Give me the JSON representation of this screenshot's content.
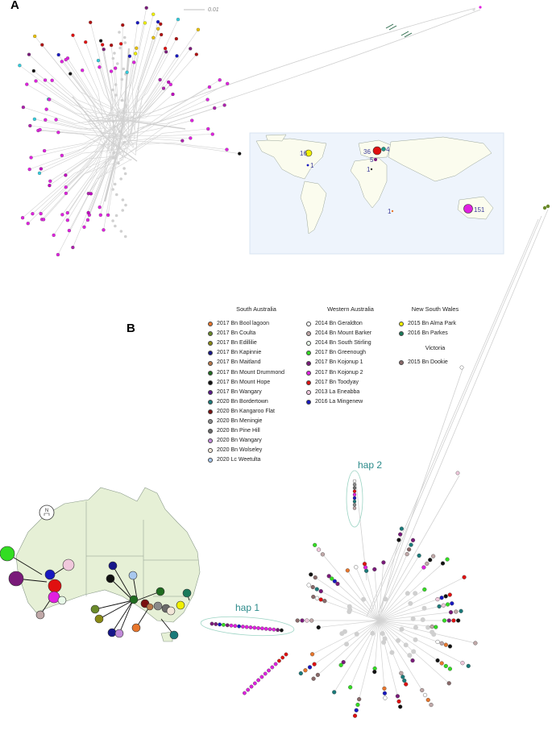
{
  "panel_a": {
    "label": "A",
    "scale_label": "0.01",
    "map_counts": [
      "16",
      "1",
      "36",
      "4",
      "5",
      "1",
      "1",
      "151"
    ]
  },
  "panel_b": {
    "label": "B",
    "hap_labels": [
      "hap 2",
      "hap 1"
    ],
    "legend_groups": [
      {
        "title": "South Australia",
        "items": [
          {
            "label": "2017 Bn Bool lagoon",
            "color": "#e8762c"
          },
          {
            "label": "2017 Bn Coulta",
            "color": "#6a8a2a"
          },
          {
            "label": "2017 Bn Edillilie",
            "color": "#8a8a14"
          },
          {
            "label": "2017 Bn Kapinnie",
            "color": "#16168a"
          },
          {
            "label": "2017 Bn Maitland",
            "color": "#b8784a"
          },
          {
            "label": "2017 Bn Mount Drummond",
            "color": "#1f6b1f"
          },
          {
            "label": "2017 Bn Mount Hope",
            "color": "#111111"
          },
          {
            "label": "2017 Bn Wangary",
            "color": "#5a1a8a"
          },
          {
            "label": "2020 Bn Bordertown",
            "color": "#1a7a7a"
          },
          {
            "label": "2020 Bn Kangaroo Flat",
            "color": "#7a1010"
          },
          {
            "label": "2020 Bn Meningie",
            "color": "#8a8a8a"
          },
          {
            "label": "2020 Bn Pine Hill",
            "color": "#6a6a6a"
          },
          {
            "label": "2020 Bn Wangary",
            "color": "#c08ad8"
          },
          {
            "label": "2020 Bn Wolseley",
            "color": "#f2e6d8"
          },
          {
            "label": "2020 Lc Weetulta",
            "color": "#a8c8ee"
          }
        ]
      },
      {
        "title": "Western Australia",
        "items": [
          {
            "label": "2014 Bn Geraldton",
            "color": "#ffffff"
          },
          {
            "label": "2014 Bn Mount Barker",
            "color": "#c0a8a8"
          },
          {
            "label": "2014 Bn South Stirling",
            "color": "#e8f8e8"
          },
          {
            "label": "2017 Bn Greenough",
            "color": "#33dd22"
          },
          {
            "label": "2017 Bn Kojonup 1",
            "color": "#7a1a7a"
          },
          {
            "label": "2017 Bn Kojonup 2",
            "color": "#e020e0"
          },
          {
            "label": "2017 Bn Toodyay",
            "color": "#e01010"
          },
          {
            "label": "2013 La Eneabba",
            "color": "#f0c8dc"
          },
          {
            "label": "2016 La Mingenew",
            "color": "#1818c0"
          }
        ]
      },
      {
        "title": "New South Wales",
        "items": [
          {
            "label": "2015 Bn Alma Park",
            "color": "#f0f000"
          },
          {
            "label": "2016 Bn Parkes",
            "color": "#1a7a5a"
          }
        ]
      },
      {
        "title": "Victoria",
        "items": [
          {
            "label": "2015 Bn Dookie",
            "color": "#8a6a6a"
          }
        ]
      }
    ]
  }
}
